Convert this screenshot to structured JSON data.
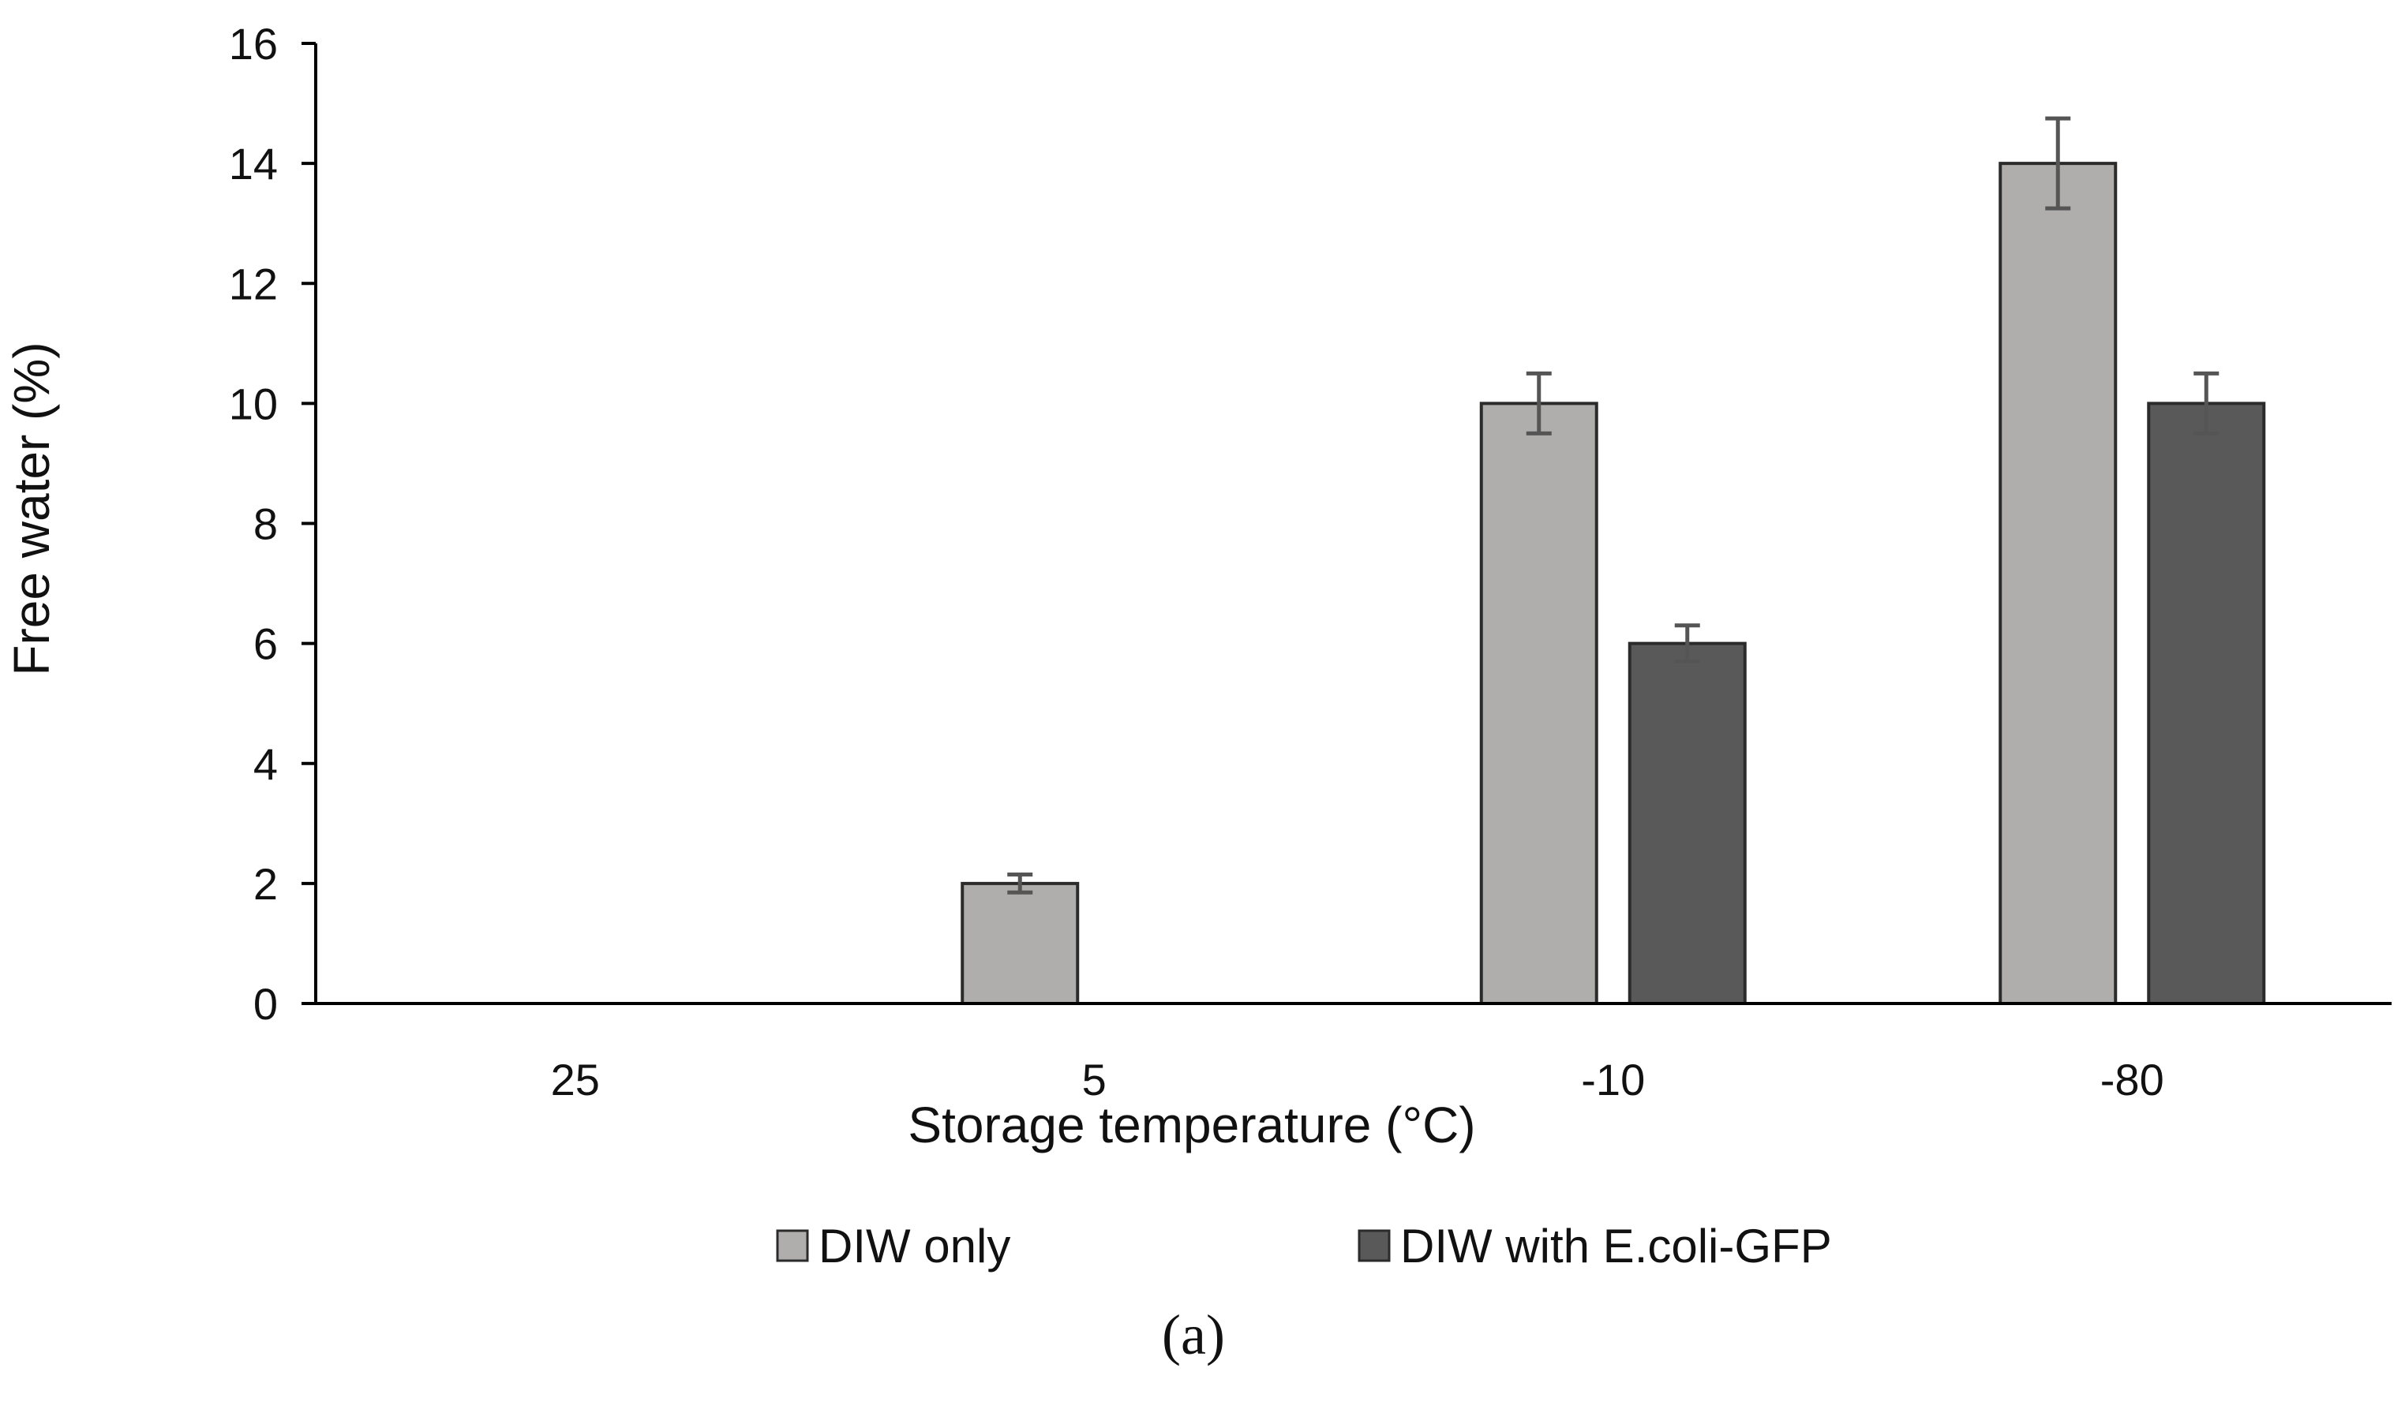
{
  "chart_data": {
    "type": "bar",
    "categories": [
      "25",
      "5",
      "-10",
      "-80"
    ],
    "series": [
      {
        "name": "DIW only",
        "values": [
          0,
          2,
          10,
          14
        ],
        "errors": [
          0,
          0.15,
          0.5,
          0.75
        ],
        "color": "#b0aeac"
      },
      {
        "name": "DIW with E.coli-GFP",
        "values": [
          0,
          0,
          6,
          10
        ],
        "errors": [
          0,
          0,
          0.3,
          0.5
        ],
        "color": "#595959"
      }
    ],
    "title": "",
    "xlabel": "Storage temperature (°C)",
    "ylabel": "Free water (%)",
    "ylim": [
      0,
      16
    ],
    "yticks": [
      "0",
      "2",
      "4",
      "6",
      "8",
      "10",
      "12",
      "14",
      "16"
    ],
    "grid": false,
    "legend_position": "bottom"
  },
  "caption": "(a)"
}
